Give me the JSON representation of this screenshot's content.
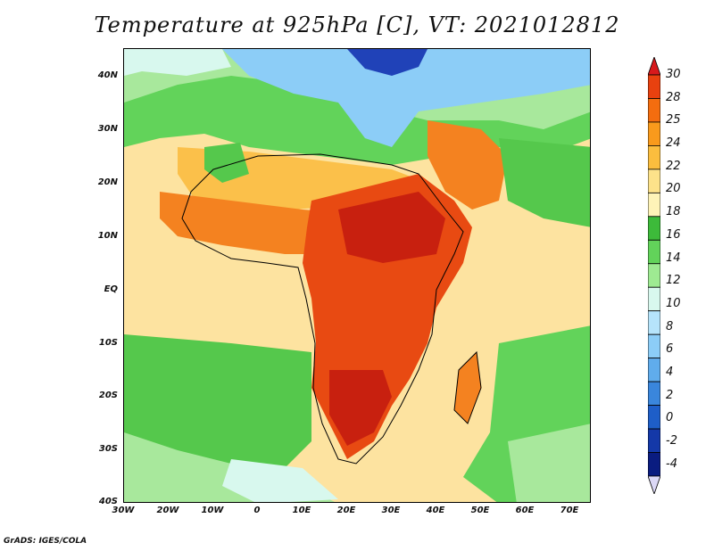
{
  "title": "Temperature at 925hPa [C], VT: 2021012812",
  "footer": "GrADS: IGES/COLA",
  "axes": {
    "lat_labels": [
      "40N",
      "30N",
      "20N",
      "10N",
      "EQ",
      "10S",
      "20S",
      "30S",
      "40S"
    ],
    "lon_labels": [
      "30W",
      "20W",
      "10W",
      "0",
      "10E",
      "20E",
      "30E",
      "40E",
      "50E",
      "60E",
      "70E"
    ]
  },
  "colorbar": {
    "labels": [
      "30",
      "28",
      "25",
      "24",
      "22",
      "20",
      "18",
      "16",
      "14",
      "12",
      "10",
      "8",
      "6",
      "4",
      "2",
      "0",
      "-2",
      "-4"
    ],
    "colors": [
      "#d7191c",
      "#e8410f",
      "#f46d0f",
      "#f99a1c",
      "#fbbd3e",
      "#fde28a",
      "#fef3b8",
      "#3dba3a",
      "#62d35a",
      "#9eea92",
      "#d8f8ee",
      "#b6e4fb",
      "#8ccdf7",
      "#60acec",
      "#3a86dc",
      "#1e5ec8",
      "#1438a8",
      "#0a1c80",
      "#dcd8f6"
    ]
  },
  "regions": {
    "colors": {
      "hot": "#c8200f",
      "verywarm": "#e84a12",
      "warm": "#f48220",
      "mild": "#fbc04a",
      "pale": "#fde3a0",
      "green": "#55c84c",
      "lightgreen": "#a8e89c",
      "cyan": "#d8f8ee",
      "blue": "#8ccdf7",
      "darkblue": "#2042b8"
    }
  }
}
